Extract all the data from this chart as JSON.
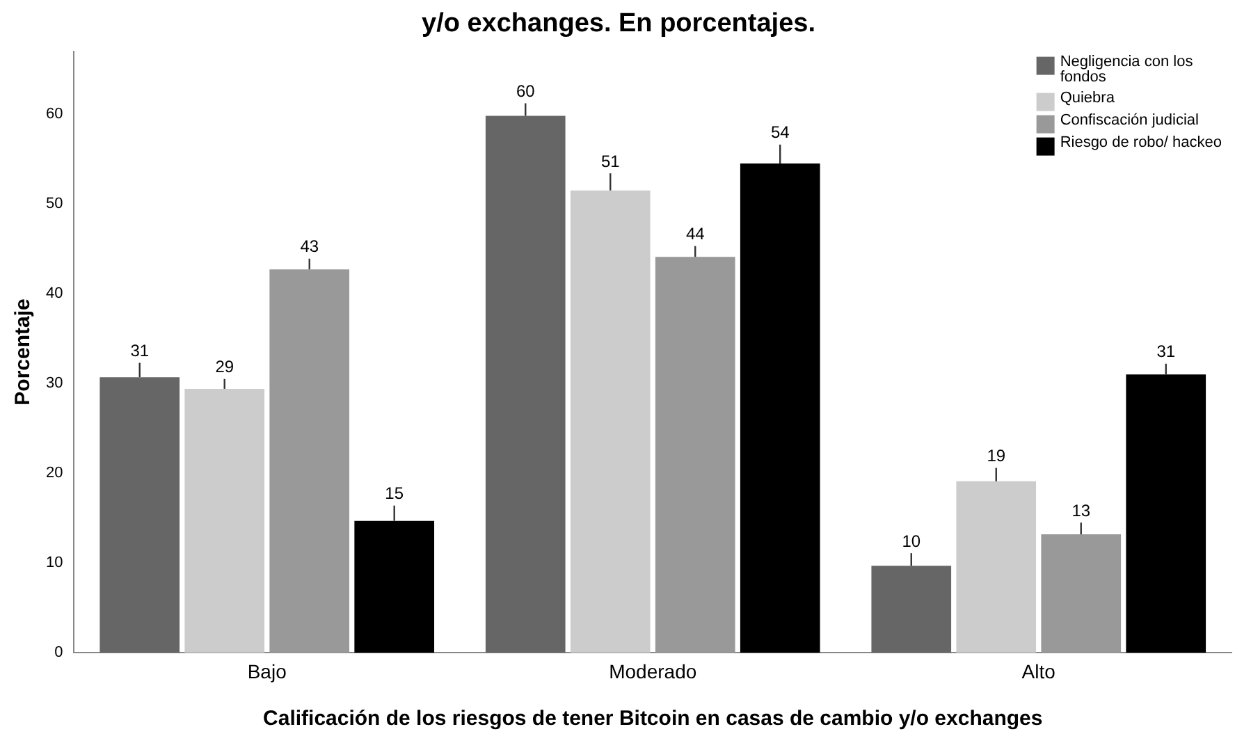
{
  "chart_data": {
    "type": "bar",
    "title": "y/o exchanges. En porcentajes.",
    "xlabel": "Calificación de los riesgos de tener Bitcoin en casas de cambio y/o exchanges",
    "ylabel": "Porcentaje",
    "categories": [
      "Bajo",
      "Moderado",
      "Alto"
    ],
    "series": [
      {
        "name": "Negligencia con los fondos",
        "color": "#666666",
        "values": [
          30.7,
          59.8,
          9.7
        ],
        "value_labels": [
          "31",
          "60",
          "10"
        ],
        "errors": [
          [
            30.7,
            32.3
          ],
          [
            59.8,
            61.2
          ],
          [
            9.7,
            11.1
          ]
        ]
      },
      {
        "name": "Quiebra",
        "color": "#cccccc",
        "values": [
          29.4,
          51.5,
          19.1
        ],
        "value_labels": [
          "29",
          "51",
          "19"
        ],
        "errors": [
          [
            29.4,
            30.5
          ],
          [
            51.5,
            53.4
          ],
          [
            19.1,
            20.6
          ]
        ]
      },
      {
        "name": "Confiscación judicial",
        "color": "#999999",
        "values": [
          42.7,
          44.1,
          13.2
        ],
        "value_labels": [
          "43",
          "44",
          "13"
        ],
        "errors": [
          [
            42.7,
            43.9
          ],
          [
            44.1,
            45.3
          ],
          [
            13.2,
            14.5
          ]
        ]
      },
      {
        "name": "Riesgo de robo/ hackeo",
        "color": "#000000",
        "values": [
          14.7,
          54.5,
          31.0
        ],
        "value_labels": [
          "15",
          "54",
          "31"
        ],
        "errors": [
          [
            14.7,
            16.4
          ],
          [
            54.5,
            56.6
          ],
          [
            31.0,
            32.2
          ]
        ]
      }
    ],
    "ylim": [
      0,
      67
    ],
    "yticks": [
      0,
      10,
      20,
      30,
      40,
      50,
      60
    ],
    "grid": false,
    "legend": "top right"
  }
}
